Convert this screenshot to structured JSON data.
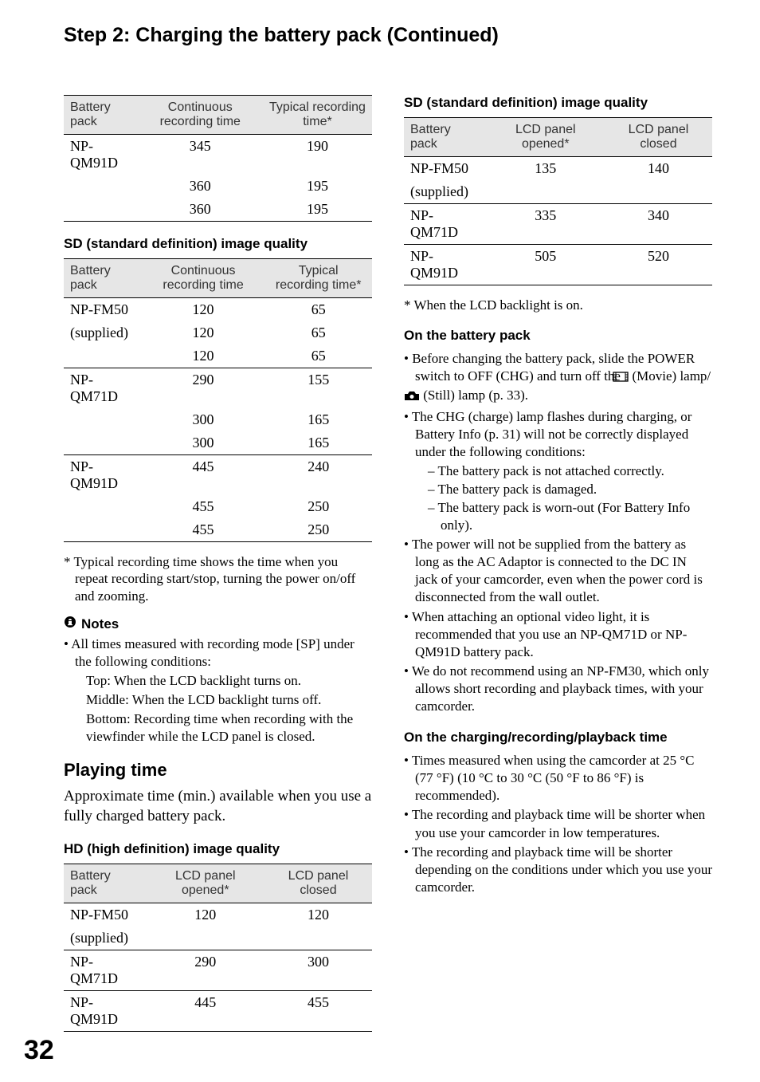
{
  "page": {
    "title": "Step 2: Charging the battery pack (Continued)",
    "number": "32"
  },
  "left": {
    "table1": {
      "headers": [
        "Battery pack",
        "Continuous recording time",
        "Typical recording time*"
      ],
      "rows": [
        {
          "label": "NP-QM91D",
          "c": "345",
          "t": "190",
          "sep": true
        },
        {
          "label": "",
          "c": "360",
          "t": "195"
        },
        {
          "label": "",
          "c": "360",
          "t": "195",
          "last": true
        }
      ]
    },
    "sd_heading": "SD (standard definition) image quality",
    "table2": {
      "headers": [
        "Battery pack",
        "Continuous recording time",
        "Typical recording time*"
      ],
      "rows": [
        {
          "label": "NP-FM50",
          "c": "120",
          "t": "65",
          "sep": false
        },
        {
          "label": "(supplied)",
          "c": "120",
          "t": "65"
        },
        {
          "label": "",
          "c": "120",
          "t": "65"
        },
        {
          "label": "NP-QM71D",
          "c": "290",
          "t": "155",
          "sep": true
        },
        {
          "label": "",
          "c": "300",
          "t": "165"
        },
        {
          "label": "",
          "c": "300",
          "t": "165"
        },
        {
          "label": "NP-QM91D",
          "c": "445",
          "t": "240",
          "sep": true
        },
        {
          "label": "",
          "c": "455",
          "t": "250"
        },
        {
          "label": "",
          "c": "455",
          "t": "250",
          "last": true
        }
      ]
    },
    "footnote1": "* Typical recording time shows the time when you repeat recording start/stop, turning the power on/off and zooming.",
    "notes_label": "Notes",
    "note_bullet": "All times measured with recording mode [SP] under the following conditions:",
    "note_lines": [
      "Top: When the LCD backlight turns on.",
      "Middle: When the LCD backlight turns off.",
      "Bottom: Recording time when recording with the viewfinder while the LCD panel is closed."
    ],
    "playing_heading": "Playing time",
    "playing_body": "Approximate time (min.) available when you use a fully charged battery pack.",
    "hd_heading": "HD (high definition) image quality",
    "table3": {
      "headers": [
        "Battery pack",
        "LCD panel opened*",
        "LCD panel closed"
      ],
      "rows": [
        {
          "label": "NP-FM50",
          "c": "120",
          "t": "120",
          "sep": false
        },
        {
          "label": "(supplied)",
          "c": "",
          "t": ""
        },
        {
          "label": "NP-QM71D",
          "c": "290",
          "t": "300",
          "sep": true
        },
        {
          "label": "NP-QM91D",
          "c": "445",
          "t": "455",
          "sep": true,
          "last": true
        }
      ]
    }
  },
  "right": {
    "sd_heading": "SD (standard definition) image quality",
    "table4": {
      "headers": [
        "Battery pack",
        "LCD panel opened*",
        "LCD panel closed"
      ],
      "rows": [
        {
          "label": "NP-FM50",
          "c": "135",
          "t": "140",
          "sep": false
        },
        {
          "label": "(supplied)",
          "c": "",
          "t": ""
        },
        {
          "label": "NP-QM71D",
          "c": "335",
          "t": "340",
          "sep": true
        },
        {
          "label": "NP-QM91D",
          "c": "505",
          "t": "520",
          "sep": true,
          "last": true
        }
      ]
    },
    "footnote2": "* When the LCD backlight is on.",
    "battery_heading": "On the battery pack",
    "battery_bullets": [
      {
        "text_before": "Before changing the battery pack, slide the POWER switch to OFF (CHG) and turn off the ",
        "icon1": true,
        "mid": " (Movie) lamp/",
        "icon2": true,
        "text_after": " (Still) lamp (p. 33)."
      },
      {
        "text": "The CHG (charge) lamp flashes during charging, or Battery Info (p. 31) will not be correctly displayed under the following conditions:",
        "dashes": [
          "The battery pack is not attached correctly.",
          "The battery pack is damaged.",
          "The battery pack is worn-out (For Battery Info only)."
        ]
      },
      {
        "text": "The power will not be supplied from the battery as long as the AC Adaptor is connected to the DC IN jack of your camcorder, even when the power cord is disconnected from the wall outlet."
      },
      {
        "text": "When attaching an optional video light, it is recommended that you use an NP-QM71D or NP-QM91D battery pack."
      },
      {
        "text": "We do not recommend using an NP-FM30, which only allows short recording and playback times, with your camcorder."
      }
    ],
    "charging_heading": "On the charging/recording/playback time",
    "charging_bullets": [
      "Times measured when using the camcorder at 25 °C (77 °F) (10 °C to 30 °C (50 °F to 86 °F) is recommended).",
      "The recording and playback time will be shorter when you use your camcorder in low temperatures.",
      "The recording and playback time will be shorter depending on the conditions under which you use your camcorder."
    ]
  }
}
